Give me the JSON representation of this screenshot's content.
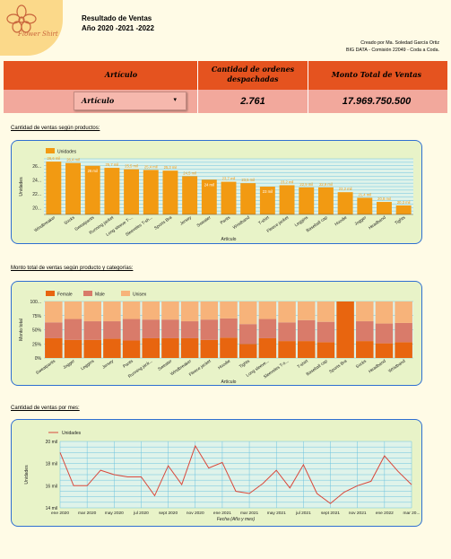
{
  "logo": {
    "brand_text": "Flower Shirt"
  },
  "header": {
    "title_line1": "Resultado de Ventas",
    "title_line2": "Año 2020 -2021 -2022",
    "credit_line1": "Creado por Ma. Soledad García Ortiz",
    "credit_line2": "BIG DATA - Comisión 22049 - Coda a Coda."
  },
  "kpis": {
    "articulo_label": "Artículo",
    "ordenes_label_line1": "Cantidad de ordenes",
    "ordenes_label_line2": "despachadas",
    "monto_label": "Monto Total de Ventas",
    "articulo_filter": "Artículo",
    "ordenes_value": "2.761",
    "monto_value": "17.969.750.500"
  },
  "sections": {
    "chart1_title": "Cantidad de ventas según productos:",
    "chart2_title": "Monto total de ventas según producto y categorías:",
    "chart3_title": "Cantidad de ventas por mes:"
  },
  "colors": {
    "bar_orange": "#f29a12",
    "female": "#e8650f",
    "male": "#d97b6a",
    "unisex": "#f7b37a",
    "line_red": "#d9483b"
  },
  "chart_data": [
    {
      "type": "bar",
      "legend": [
        "Unidades"
      ],
      "legend_position": "top-left",
      "xlabel": "Artículo",
      "ylabel": "Unidades",
      "ylim": [
        19,
        27
      ],
      "yticks": [
        "20...",
        "22...",
        "24...",
        "26..."
      ],
      "grid": true,
      "categories": [
        "Windbreaker",
        "Socks",
        "Sweatpants",
        "Running jacket",
        "Long sleeve T-...",
        "Sleeveles T-sh...",
        "Sports Bra",
        "Jersey",
        "Sweater",
        "Pants",
        "Wristband",
        "T-shirt",
        "Fleece jacket",
        "Leggins",
        "Baseball cap",
        "Hoodie",
        "Jogger",
        "Headband",
        "Tights"
      ],
      "values": [
        26.6,
        26.4,
        26.0,
        25.7,
        25.5,
        25.4,
        25.3,
        24.5,
        24.0,
        23.7,
        23.5,
        23.0,
        23.2,
        22.9,
        22.9,
        22.2,
        21.4,
        20.8,
        20.3
      ],
      "data_labels": [
        "26,6 mil",
        "26,4 mil",
        "26 mil",
        "25,7 mil",
        "25,5 mil",
        "25,4 mil",
        "25,3 mil",
        "24,5 mil",
        "24 mil",
        "23,7 mil",
        "23,5 mil",
        "23 mil",
        "23,2 mil",
        "22,9 mil",
        "22,9 mil",
        "22,2 mil",
        "21,4 mil",
        "20,8 mil",
        "20,3 mil"
      ]
    },
    {
      "type": "bar",
      "stacked": "percent",
      "legend_position": "top-left",
      "xlabel": "Artículo",
      "ylabel": "Monto total",
      "ylim": [
        0,
        100
      ],
      "yticks": [
        "0%",
        "25%",
        "50%",
        "75%",
        "100..."
      ],
      "grid": true,
      "categories": [
        "Sweatpants",
        "Jogger",
        "Leggins",
        "Jersey",
        "Pants",
        "Running jack...",
        "Sweater",
        "Windbreaker",
        "Fleece jacket",
        "Hoodie",
        "Tights",
        "Long sleeve...",
        "Sleeveles T-s...",
        "T-shirt",
        "Baseball cap",
        "Sports Bra",
        "Socks",
        "Headband",
        "Wristband"
      ],
      "series": [
        {
          "name": "Female",
          "values": [
            35,
            32,
            32,
            34,
            31,
            35,
            35,
            35,
            32,
            36,
            25,
            35,
            30,
            30,
            28,
            100,
            30,
            26,
            28
          ]
        },
        {
          "name": "Male",
          "values": [
            28,
            37,
            33,
            31,
            38,
            33,
            33,
            30,
            36,
            34,
            35,
            34,
            33,
            37,
            36,
            0,
            35,
            35,
            34
          ]
        },
        {
          "name": "Unisex",
          "values": [
            37,
            31,
            35,
            35,
            31,
            32,
            32,
            35,
            32,
            30,
            40,
            31,
            37,
            33,
            36,
            0,
            35,
            39,
            38
          ]
        }
      ]
    },
    {
      "type": "line",
      "legend": [
        "Unidades"
      ],
      "legend_position": "top-left",
      "xlabel": "Fecha (Año y mes)",
      "ylabel": "Unidades",
      "ylim": [
        14,
        20
      ],
      "yticks": [
        "14 mil",
        "16 mil",
        "18 mil",
        "20 mil"
      ],
      "xticks": [
        "ene 2020",
        "mar 2020",
        "may 2020",
        "jul 2020",
        "sept 2020",
        "nov 2020",
        "ene 2021",
        "mar 2021",
        "may 2021",
        "jul 2021",
        "sept 2021",
        "nov 2021",
        "ene 2022",
        "mar 20..."
      ],
      "grid": true,
      "x": [
        "ene 2020",
        "feb 2020",
        "mar 2020",
        "abr 2020",
        "may 2020",
        "jun 2020",
        "jul 2020",
        "ago 2020",
        "sept 2020",
        "oct 2020",
        "nov 2020",
        "dic 2020",
        "ene 2021",
        "feb 2021",
        "mar 2021",
        "abr 2021",
        "may 2021",
        "jun 2021",
        "jul 2021",
        "ago 2021",
        "sept 2021",
        "oct 2021",
        "nov 2021",
        "dic 2021",
        "ene 2022",
        "feb 2022",
        "mar 2022"
      ],
      "values": [
        19.0,
        16.0,
        16.0,
        17.4,
        17.0,
        16.8,
        16.8,
        15.1,
        17.8,
        16.1,
        19.6,
        17.6,
        18.1,
        15.5,
        15.3,
        16.2,
        17.4,
        15.8,
        17.9,
        15.3,
        14.4,
        15.4,
        16.0,
        16.4,
        18.7,
        17.3,
        16.1
      ]
    }
  ]
}
